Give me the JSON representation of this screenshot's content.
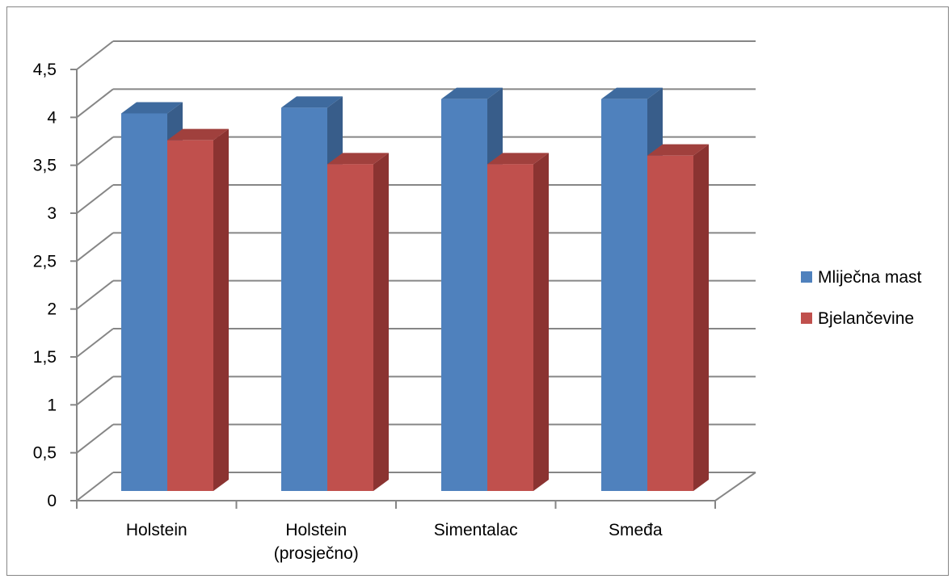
{
  "chart_data": {
    "type": "bar",
    "style": "3d-clustered-column",
    "categories": [
      "Holstein",
      "Holstein (prosječno)",
      "Simentalac",
      "Smeđa"
    ],
    "category_lines": [
      [
        "Holstein"
      ],
      [
        "Holstein",
        "(prosječno)"
      ],
      [
        "Simentalac"
      ],
      [
        "Smeđa"
      ]
    ],
    "series": [
      {
        "name": "Mliječna mast",
        "values": [
          3.94,
          4.0,
          4.09,
          4.09
        ],
        "color": "#4F81BD",
        "side_color": "#385D8A",
        "top_color": "#3E6A9E"
      },
      {
        "name": "Bjelančevine",
        "values": [
          3.66,
          3.41,
          3.41,
          3.5
        ],
        "color": "#C0504D",
        "side_color": "#8B3331",
        "top_color": "#A0403D"
      }
    ],
    "yticks": [
      "0",
      "0,5",
      "1",
      "1,5",
      "2",
      "2,5",
      "3",
      "3,5",
      "4",
      "4,5"
    ],
    "ylim": [
      0,
      4.5
    ],
    "grid": true,
    "legend_position": "right",
    "title": "",
    "xlabel": "",
    "ylabel": ""
  }
}
